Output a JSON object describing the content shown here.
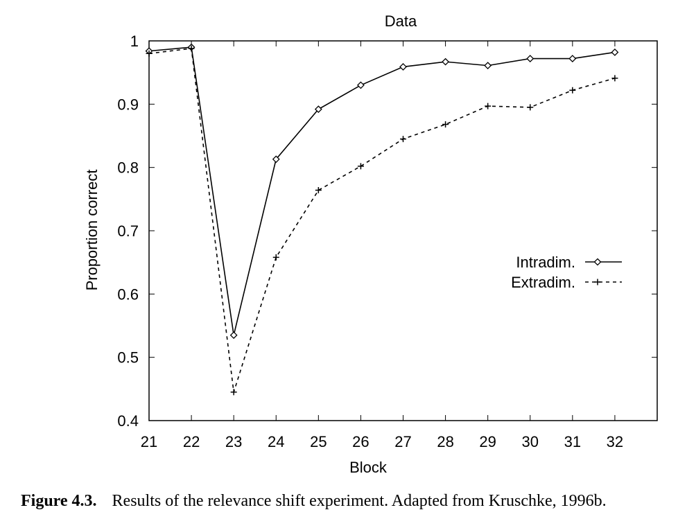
{
  "caption": {
    "figure_label": "Figure 4.3.",
    "text": "Results of the relevance shift experiment. Adapted from Kruschke, 1996b."
  },
  "chart_data": {
    "type": "line",
    "title": "Data",
    "xlabel": "Block",
    "ylabel": "Proportion correct",
    "x": [
      21,
      22,
      23,
      24,
      25,
      26,
      27,
      28,
      29,
      30,
      31,
      32
    ],
    "xlim": [
      21,
      33
    ],
    "ylim": [
      0.4,
      1.0
    ],
    "xticks": [
      "21",
      "22",
      "23",
      "24",
      "25",
      "26",
      "27",
      "28",
      "29",
      "30",
      "31",
      "32"
    ],
    "yticks": [
      "0.4",
      "0.5",
      "0.6",
      "0.7",
      "0.8",
      "0.9",
      "1"
    ],
    "yticks_values": [
      0.4,
      0.5,
      0.6,
      0.7,
      0.8,
      0.9,
      1.0
    ],
    "grid": false,
    "legend_position": "right-middle",
    "series": [
      {
        "name": "Intradim.",
        "marker": "diamond",
        "line": "solid",
        "color": "#000000",
        "values": [
          0.984,
          0.99,
          0.535,
          0.813,
          0.892,
          0.93,
          0.959,
          0.967,
          0.961,
          0.972,
          0.972,
          0.982
        ]
      },
      {
        "name": "Extradim.",
        "marker": "plus",
        "line": "dashed",
        "color": "#000000",
        "values": [
          0.98,
          0.988,
          0.445,
          0.658,
          0.764,
          0.802,
          0.845,
          0.868,
          0.897,
          0.895,
          0.922,
          0.941
        ]
      }
    ]
  }
}
